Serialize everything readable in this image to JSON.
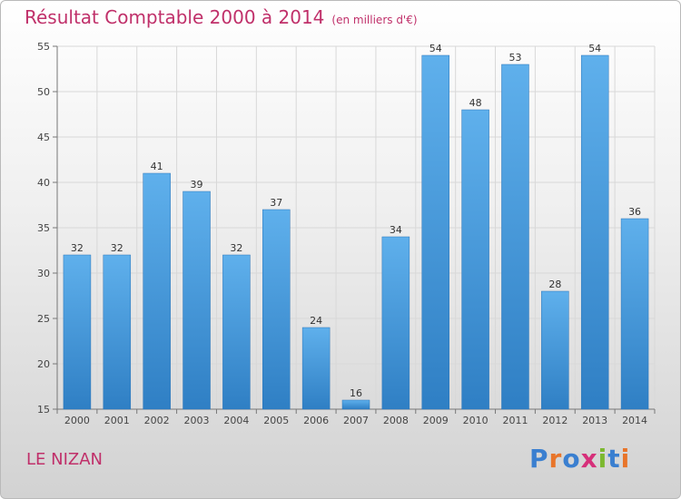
{
  "chart_data": {
    "type": "bar",
    "title": "Résultat Comptable 2000 à 2014",
    "subtitle": "(en milliers d'€)",
    "categories": [
      "2000",
      "2001",
      "2002",
      "2003",
      "2004",
      "2005",
      "2006",
      "2007",
      "2008",
      "2009",
      "2010",
      "2011",
      "2012",
      "2013",
      "2014"
    ],
    "values": [
      32,
      32,
      41,
      39,
      32,
      37,
      24,
      16,
      34,
      54,
      48,
      53,
      28,
      54,
      36
    ],
    "ylim": [
      15,
      55
    ],
    "yticks": [
      15,
      20,
      25,
      30,
      35,
      40,
      45,
      50,
      55
    ],
    "grid": true,
    "bar_color": "#4a9fdf",
    "xlabel": "",
    "ylabel": ""
  },
  "footer": {
    "place": "LE NIZAN",
    "logo": "Proxiti",
    "logo_colors": [
      "#3a7fd0",
      "#e8752a",
      "#3a7fd0",
      "#d6307a",
      "#7cb82f",
      "#3a7fd0",
      "#e8752a"
    ]
  }
}
